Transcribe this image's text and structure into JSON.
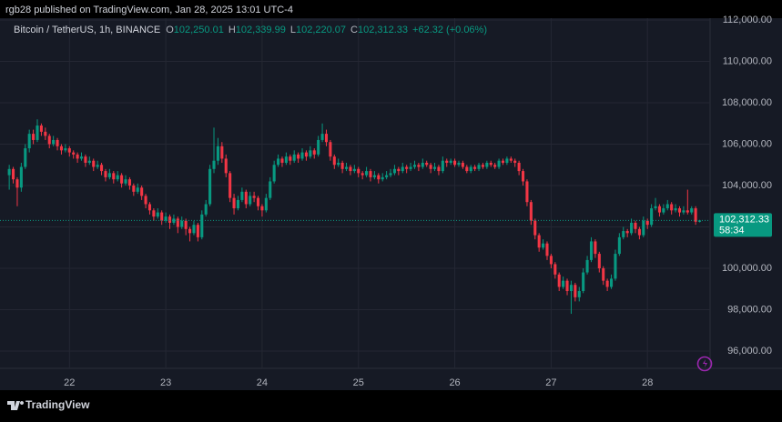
{
  "header": {
    "published": "rgb28 published on TradingView.com, Jan 28, 2025 13:01 UTC-4"
  },
  "chart_data": {
    "type": "candlestick",
    "legend": {
      "symbol": "Bitcoin / TetherUS, 1h, BINANCE",
      "ohlc": [
        {
          "letter": "O",
          "value": "102,250.01"
        },
        {
          "letter": "H",
          "value": "102,339.99"
        },
        {
          "letter": "L",
          "value": "102,220.07"
        },
        {
          "letter": "C",
          "value": "102,312.33"
        }
      ],
      "change": "+62.32 (+0.06%)"
    },
    "up_color": "#089981",
    "down_color": "#f23645",
    "ylim": [
      95165,
      112088
    ],
    "yticks": [
      {
        "value": 96000,
        "label": "96,000.00"
      },
      {
        "value": 98000,
        "label": "98,000.00"
      },
      {
        "value": 100000,
        "label": "100,000.00"
      },
      {
        "value": 102000,
        "label": "102,000.00"
      },
      {
        "value": 104000,
        "label": "104,000.00"
      },
      {
        "value": 106000,
        "label": "106,000.00"
      },
      {
        "value": 108000,
        "label": "108,000.00"
      },
      {
        "value": 110000,
        "label": "110,000.00"
      },
      {
        "value": 112000,
        "label": "112,000.00"
      }
    ],
    "xlim": [
      -2.3,
      174.6
    ],
    "xticks": [
      {
        "value": 15,
        "label": "22"
      },
      {
        "value": 39,
        "label": "23"
      },
      {
        "value": 63,
        "label": "24"
      },
      {
        "value": 87,
        "label": "25"
      },
      {
        "value": 111,
        "label": "26"
      },
      {
        "value": 135,
        "label": "27"
      },
      {
        "value": 159,
        "label": "28"
      }
    ],
    "grid": true,
    "last_price": {
      "value": 102312.33,
      "label": "102,312.33"
    },
    "countdown": "58:34",
    "candles": [
      [
        104500,
        105000,
        103800,
        104800
      ],
      [
        104800,
        104900,
        104100,
        104300
      ],
      [
        104300,
        104400,
        103000,
        103900
      ],
      [
        103900,
        105100,
        103700,
        104900
      ],
      [
        104900,
        106000,
        104800,
        105800
      ],
      [
        105800,
        106700,
        105600,
        106500
      ],
      [
        106500,
        106700,
        106000,
        106200
      ],
      [
        106200,
        107200,
        106100,
        106900
      ],
      [
        106900,
        107000,
        106400,
        106600
      ],
      [
        106600,
        106800,
        106200,
        106400
      ],
      [
        106400,
        106500,
        105800,
        106000
      ],
      [
        106000,
        106400,
        105900,
        106200
      ],
      [
        106200,
        106300,
        105700,
        105900
      ],
      [
        105900,
        106000,
        105500,
        105700
      ],
      [
        105700,
        106000,
        105600,
        105800
      ],
      [
        105800,
        105900,
        105400,
        105600
      ],
      [
        105600,
        105700,
        105300,
        105500
      ],
      [
        105500,
        105600,
        105100,
        105300
      ],
      [
        105300,
        105600,
        105200,
        105400
      ],
      [
        105400,
        105500,
        104900,
        105100
      ],
      [
        105100,
        105400,
        105000,
        105200
      ],
      [
        105200,
        105300,
        104700,
        104900
      ],
      [
        104900,
        105200,
        104800,
        105000
      ],
      [
        105000,
        105100,
        104500,
        104700
      ],
      [
        104700,
        104800,
        104200,
        104400
      ],
      [
        104400,
        104800,
        104300,
        104600
      ],
      [
        104600,
        104700,
        104100,
        104300
      ],
      [
        104300,
        104700,
        104200,
        104500
      ],
      [
        104500,
        104600,
        103900,
        104100
      ],
      [
        104100,
        104500,
        104000,
        104300
      ],
      [
        104300,
        104400,
        103800,
        104000
      ],
      [
        104000,
        104100,
        103500,
        103700
      ],
      [
        103700,
        104100,
        103600,
        103900
      ],
      [
        103900,
        104000,
        103300,
        103500
      ],
      [
        103500,
        103600,
        102900,
        103100
      ],
      [
        103100,
        103200,
        102600,
        102800
      ],
      [
        102800,
        102900,
        102300,
        102500
      ],
      [
        102500,
        102900,
        102400,
        102700
      ],
      [
        102700,
        102800,
        102100,
        102300
      ],
      [
        102300,
        102700,
        102200,
        102500
      ],
      [
        102500,
        102600,
        101900,
        102200
      ],
      [
        102200,
        102600,
        102100,
        102400
      ],
      [
        102400,
        102500,
        101700,
        102000
      ],
      [
        102000,
        102500,
        101900,
        102300
      ],
      [
        102300,
        102400,
        101600,
        101900
      ],
      [
        101900,
        102000,
        101300,
        101700
      ],
      [
        101700,
        102300,
        101600,
        102100
      ],
      [
        102100,
        102200,
        101300,
        101500
      ],
      [
        101500,
        102800,
        101400,
        102600
      ],
      [
        102600,
        103300,
        102500,
        103100
      ],
      [
        103100,
        105000,
        103000,
        104800
      ],
      [
        104800,
        106800,
        104600,
        105200
      ],
      [
        105200,
        106300,
        105000,
        105900
      ],
      [
        105900,
        106100,
        105100,
        105300
      ],
      [
        105300,
        105500,
        104400,
        104600
      ],
      [
        104600,
        104700,
        103200,
        103400
      ],
      [
        103400,
        103600,
        102600,
        102900
      ],
      [
        102900,
        103500,
        102800,
        103300
      ],
      [
        103300,
        103900,
        103200,
        103700
      ],
      [
        103700,
        103800,
        102900,
        103100
      ],
      [
        103100,
        103700,
        103000,
        103500
      ],
      [
        103500,
        103700,
        103200,
        103400
      ],
      [
        103400,
        103500,
        102800,
        103000
      ],
      [
        103000,
        103100,
        102500,
        102800
      ],
      [
        102800,
        103600,
        102700,
        103400
      ],
      [
        103400,
        104400,
        103300,
        104200
      ],
      [
        104200,
        105200,
        104100,
        105000
      ],
      [
        105000,
        105500,
        104900,
        105300
      ],
      [
        105300,
        105400,
        104900,
        105100
      ],
      [
        105100,
        105600,
        105000,
        105400
      ],
      [
        105400,
        105500,
        105000,
        105200
      ],
      [
        105200,
        105700,
        105100,
        105500
      ],
      [
        105500,
        105600,
        105100,
        105300
      ],
      [
        105300,
        105800,
        105200,
        105600
      ],
      [
        105600,
        105700,
        105200,
        105400
      ],
      [
        105400,
        105900,
        105300,
        105700
      ],
      [
        105700,
        105800,
        105300,
        105500
      ],
      [
        105500,
        106400,
        105400,
        106200
      ],
      [
        106200,
        107000,
        106100,
        106500
      ],
      [
        106500,
        106700,
        105900,
        106100
      ],
      [
        106100,
        106200,
        105200,
        105400
      ],
      [
        105400,
        105500,
        104800,
        105000
      ],
      [
        105000,
        105300,
        104900,
        105100
      ],
      [
        105100,
        105200,
        104600,
        104800
      ],
      [
        104800,
        105100,
        104700,
        104900
      ],
      [
        104900,
        105000,
        104500,
        104700
      ],
      [
        104700,
        105000,
        104600,
        104800
      ],
      [
        104800,
        104900,
        104400,
        104600
      ],
      [
        104600,
        104700,
        104300,
        104500
      ],
      [
        104500,
        104900,
        104400,
        104700
      ],
      [
        104700,
        104800,
        104200,
        104400
      ],
      [
        104400,
        104700,
        104300,
        104500
      ],
      [
        104500,
        104600,
        104100,
        104300
      ],
      [
        104300,
        104600,
        104200,
        104400
      ],
      [
        104400,
        104700,
        104300,
        104500
      ],
      [
        104500,
        104800,
        104400,
        104600
      ],
      [
        104600,
        105000,
        104500,
        104800
      ],
      [
        104800,
        104900,
        104500,
        104700
      ],
      [
        104700,
        105100,
        104600,
        104900
      ],
      [
        104900,
        105000,
        104600,
        104800
      ],
      [
        104800,
        105100,
        104700,
        104900
      ],
      [
        104900,
        105200,
        104800,
        105000
      ],
      [
        105000,
        105100,
        104700,
        104900
      ],
      [
        104900,
        105300,
        104800,
        105100
      ],
      [
        105100,
        105200,
        104900,
        105000
      ],
      [
        105000,
        105100,
        104600,
        104800
      ],
      [
        104800,
        105100,
        104700,
        104900
      ],
      [
        104900,
        105000,
        104500,
        104700
      ],
      [
        104700,
        105400,
        104600,
        105200
      ],
      [
        105200,
        105300,
        104900,
        105100
      ],
      [
        105100,
        105300,
        105000,
        105200
      ],
      [
        105200,
        105300,
        104900,
        105000
      ],
      [
        105000,
        105200,
        104900,
        105100
      ],
      [
        105100,
        105200,
        104800,
        104900
      ],
      [
        104900,
        105000,
        104600,
        104700
      ],
      [
        104700,
        105000,
        104600,
        104900
      ],
      [
        104900,
        105000,
        104700,
        104800
      ],
      [
        104800,
        105100,
        104700,
        105000
      ],
      [
        105000,
        105100,
        104800,
        104900
      ],
      [
        104900,
        105200,
        104800,
        105100
      ],
      [
        105100,
        105200,
        104900,
        105000
      ],
      [
        105000,
        105100,
        104800,
        104900
      ],
      [
        104900,
        105300,
        104800,
        105200
      ],
      [
        105200,
        105300,
        105000,
        105100
      ],
      [
        105100,
        105400,
        105000,
        105300
      ],
      [
        105300,
        105400,
        105100,
        105200
      ],
      [
        105200,
        105300,
        104900,
        105100
      ],
      [
        105100,
        105200,
        104500,
        104700
      ],
      [
        104700,
        104800,
        104000,
        104200
      ],
      [
        104200,
        104300,
        103000,
        103200
      ],
      [
        103200,
        103300,
        102100,
        102300
      ],
      [
        102300,
        102400,
        101400,
        101600
      ],
      [
        101600,
        101700,
        100800,
        101000
      ],
      [
        101000,
        101400,
        100900,
        101200
      ],
      [
        101200,
        101300,
        100400,
        100600
      ],
      [
        100600,
        100700,
        100000,
        100200
      ],
      [
        100200,
        100300,
        99500,
        99700
      ],
      [
        99700,
        99800,
        98900,
        99100
      ],
      [
        99100,
        99600,
        99000,
        99400
      ],
      [
        99400,
        99500,
        98700,
        98900
      ],
      [
        98900,
        99400,
        97800,
        99200
      ],
      [
        99200,
        99300,
        98400,
        98600
      ],
      [
        98600,
        99100,
        98400,
        98900
      ],
      [
        98900,
        100000,
        98800,
        99800
      ],
      [
        99800,
        100600,
        99700,
        100400
      ],
      [
        100400,
        101500,
        100300,
        101300
      ],
      [
        101300,
        101400,
        100500,
        100700
      ],
      [
        100700,
        100800,
        99800,
        100000
      ],
      [
        100000,
        100100,
        99200,
        99400
      ],
      [
        99400,
        99500,
        98900,
        99100
      ],
      [
        99100,
        99700,
        99000,
        99500
      ],
      [
        99500,
        100900,
        99400,
        100700
      ],
      [
        100700,
        101700,
        100600,
        101500
      ],
      [
        101500,
        102000,
        101400,
        101800
      ],
      [
        101800,
        101900,
        101500,
        101700
      ],
      [
        101700,
        102400,
        101600,
        102200
      ],
      [
        102200,
        102300,
        101700,
        101900
      ],
      [
        101900,
        102000,
        101400,
        101600
      ],
      [
        101600,
        102500,
        101500,
        102300
      ],
      [
        102300,
        102400,
        101900,
        102100
      ],
      [
        102100,
        103100,
        102000,
        102900
      ],
      [
        102900,
        103400,
        102800,
        103000
      ],
      [
        103000,
        103100,
        102500,
        102700
      ],
      [
        102700,
        103100,
        102600,
        102900
      ],
      [
        102900,
        103300,
        102800,
        103100
      ],
      [
        103100,
        103200,
        102600,
        102800
      ],
      [
        102800,
        103100,
        102700,
        102900
      ],
      [
        102900,
        103000,
        102500,
        102700
      ],
      [
        102700,
        103000,
        102600,
        102800
      ],
      [
        102800,
        103800,
        102600,
        102700
      ],
      [
        102700,
        103000,
        102600,
        102900
      ],
      [
        102900,
        103000,
        102100,
        102250.01
      ],
      [
        102250.01,
        102339.99,
        102220.07,
        102312.33
      ]
    ]
  },
  "footer": {
    "brand": "TradingView"
  }
}
